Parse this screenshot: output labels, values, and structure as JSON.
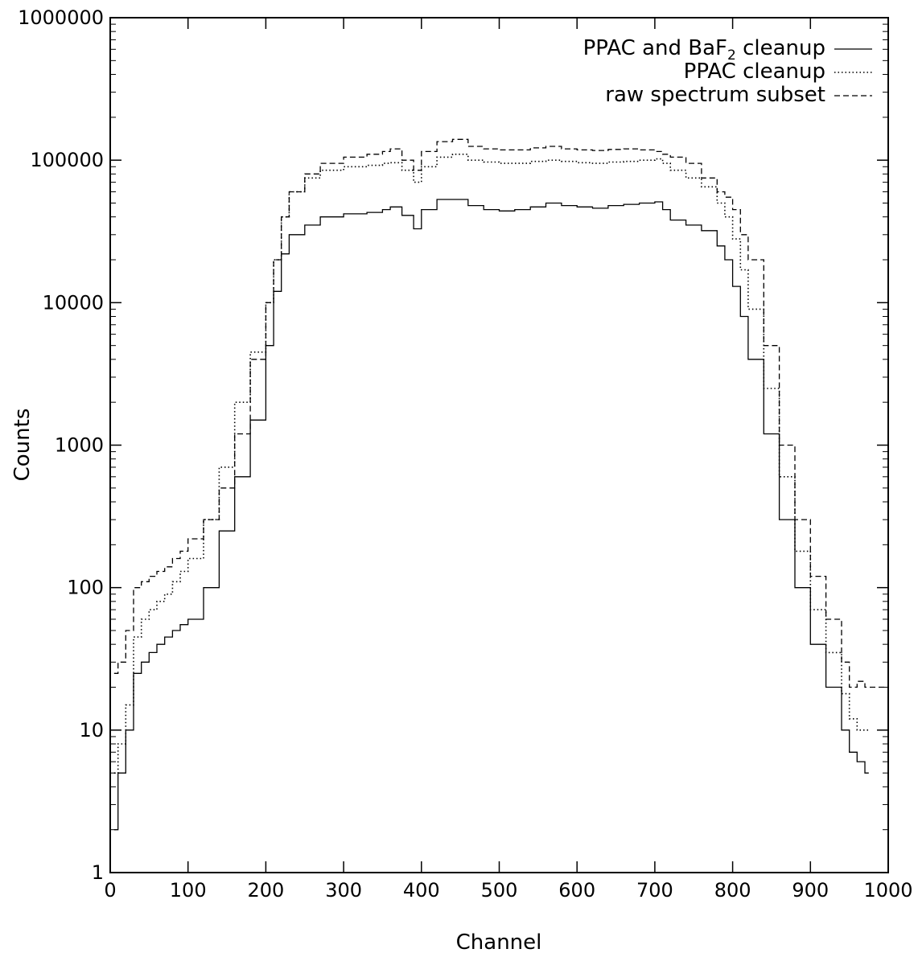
{
  "chart_data": {
    "type": "line",
    "xlabel": "Channel",
    "ylabel": "Counts",
    "xlim": [
      0,
      1000
    ],
    "ylim": [
      1,
      1000000
    ],
    "yscale": "log",
    "grid": false,
    "legend_position": "top-right",
    "xticks": [
      "0",
      "100",
      "200",
      "300",
      "400",
      "500",
      "600",
      "700",
      "800",
      "900",
      "1000"
    ],
    "yticks": [
      "1",
      "10",
      "100",
      "1000",
      "10000",
      "100000",
      "1000000"
    ],
    "series": [
      {
        "name": "PPAC and BaF2 cleanup",
        "legend_main": "PPAC and BaF",
        "legend_sub": "2",
        "legend_tail": " cleanup",
        "style": "solid",
        "x": [
          5,
          10,
          20,
          30,
          40,
          50,
          60,
          70,
          80,
          90,
          100,
          120,
          140,
          160,
          180,
          200,
          210,
          220,
          230,
          250,
          270,
          300,
          330,
          350,
          360,
          375,
          390,
          400,
          420,
          440,
          460,
          480,
          500,
          520,
          540,
          560,
          580,
          600,
          620,
          640,
          660,
          680,
          700,
          710,
          720,
          740,
          760,
          780,
          790,
          800,
          810,
          820,
          840,
          860,
          880,
          900,
          920,
          940,
          950,
          960,
          970,
          975
        ],
        "y": [
          2,
          5,
          10,
          25,
          30,
          35,
          40,
          45,
          50,
          55,
          60,
          100,
          250,
          600,
          1500,
          5000,
          12000,
          22000,
          30000,
          35000,
          40000,
          42000,
          43000,
          45000,
          47000,
          41000,
          33000,
          45000,
          53000,
          53000,
          48000,
          45000,
          44000,
          45000,
          47000,
          50000,
          48000,
          47000,
          46000,
          48000,
          49000,
          50000,
          51000,
          45000,
          38000,
          35000,
          32000,
          25000,
          20000,
          13000,
          8000,
          4000,
          1200,
          300,
          100,
          40,
          20,
          10,
          7,
          6,
          5,
          5
        ]
      },
      {
        "name": "PPAC cleanup",
        "legend_main": "PPAC cleanup",
        "legend_sub": "",
        "legend_tail": "",
        "style": "dotted",
        "x": [
          5,
          10,
          20,
          30,
          40,
          50,
          60,
          70,
          80,
          90,
          100,
          120,
          140,
          160,
          180,
          200,
          210,
          220,
          230,
          250,
          270,
          300,
          330,
          350,
          360,
          375,
          390,
          400,
          420,
          440,
          460,
          480,
          500,
          520,
          540,
          560,
          580,
          600,
          620,
          640,
          660,
          680,
          700,
          710,
          720,
          740,
          760,
          780,
          790,
          800,
          810,
          820,
          840,
          860,
          880,
          900,
          920,
          940,
          950,
          960,
          970,
          975
        ],
        "y": [
          5,
          8,
          15,
          45,
          60,
          70,
          80,
          90,
          110,
          130,
          160,
          300,
          700,
          2000,
          4500,
          10000,
          20000,
          40000,
          60000,
          75000,
          85000,
          90000,
          92000,
          95000,
          96000,
          85000,
          70000,
          90000,
          105000,
          110000,
          100000,
          97000,
          95000,
          95000,
          98000,
          100000,
          98000,
          96000,
          95000,
          97000,
          98000,
          100000,
          102000,
          95000,
          85000,
          75000,
          65000,
          50000,
          40000,
          28000,
          17000,
          9000,
          2500,
          600,
          180,
          70,
          35,
          18,
          12,
          10,
          10,
          10
        ]
      },
      {
        "name": "raw spectrum subset",
        "legend_main": "raw spectrum subset",
        "legend_sub": "",
        "legend_tail": "",
        "style": "dashed",
        "x": [
          5,
          10,
          20,
          30,
          40,
          50,
          60,
          70,
          80,
          90,
          100,
          120,
          140,
          160,
          180,
          200,
          210,
          220,
          230,
          250,
          270,
          300,
          330,
          350,
          360,
          375,
          390,
          400,
          420,
          440,
          460,
          480,
          500,
          520,
          540,
          560,
          580,
          600,
          620,
          640,
          660,
          680,
          700,
          710,
          720,
          740,
          760,
          780,
          790,
          800,
          810,
          820,
          840,
          860,
          880,
          900,
          920,
          940,
          950,
          960,
          970,
          980,
          990,
          1000
        ],
        "y": [
          25,
          30,
          50,
          100,
          110,
          120,
          130,
          140,
          160,
          180,
          220,
          300,
          500,
          1200,
          4000,
          10000,
          20000,
          40000,
          60000,
          80000,
          95000,
          105000,
          110000,
          115000,
          120000,
          100000,
          85000,
          115000,
          135000,
          140000,
          125000,
          120000,
          118000,
          118000,
          122000,
          125000,
          120000,
          118000,
          117000,
          119000,
          120000,
          118000,
          115000,
          110000,
          105000,
          95000,
          75000,
          60000,
          55000,
          45000,
          30000,
          20000,
          5000,
          1000,
          300,
          120,
          60,
          30,
          20,
          22,
          20,
          20,
          20,
          15
        ]
      }
    ]
  }
}
